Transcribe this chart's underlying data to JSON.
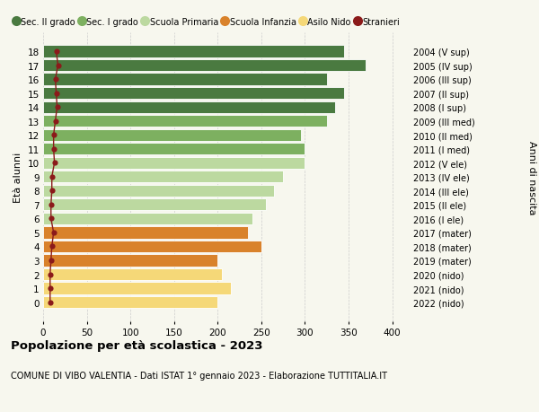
{
  "ages": [
    18,
    17,
    16,
    15,
    14,
    13,
    12,
    11,
    10,
    9,
    8,
    7,
    6,
    5,
    4,
    3,
    2,
    1,
    0
  ],
  "right_labels": [
    "2004 (V sup)",
    "2005 (IV sup)",
    "2006 (III sup)",
    "2007 (II sup)",
    "2008 (I sup)",
    "2009 (III med)",
    "2010 (II med)",
    "2011 (I med)",
    "2012 (V ele)",
    "2013 (IV ele)",
    "2014 (III ele)",
    "2015 (II ele)",
    "2016 (I ele)",
    "2017 (mater)",
    "2018 (mater)",
    "2019 (mater)",
    "2020 (nido)",
    "2021 (nido)",
    "2022 (nido)"
  ],
  "bar_values": [
    345,
    370,
    325,
    345,
    335,
    325,
    295,
    300,
    300,
    275,
    265,
    255,
    240,
    235,
    250,
    200,
    205,
    215,
    200
  ],
  "stranieri_values": [
    15,
    17,
    14,
    15,
    16,
    14,
    12,
    12,
    13,
    10,
    10,
    9,
    9,
    12,
    10,
    9,
    8,
    8,
    8
  ],
  "bar_colors": [
    "#4a7a40",
    "#4a7a40",
    "#4a7a40",
    "#4a7a40",
    "#4a7a40",
    "#7db060",
    "#7db060",
    "#7db060",
    "#bcd9a0",
    "#bcd9a0",
    "#bcd9a0",
    "#bcd9a0",
    "#bcd9a0",
    "#d9822b",
    "#d9822b",
    "#d9822b",
    "#f5d878",
    "#f5d878",
    "#f5d878"
  ],
  "colors": {
    "sec_II": "#4a7a40",
    "sec_I": "#7db060",
    "primaria": "#bcd9a0",
    "infanzia": "#d9822b",
    "nido": "#f5d878",
    "stranieri": "#8b1a1a"
  },
  "legend_labels": [
    "Sec. II grado",
    "Sec. I grado",
    "Scuola Primaria",
    "Scuola Infanzia",
    "Asilo Nido",
    "Stranieri"
  ],
  "ylabel_left": "Età alunni",
  "ylabel_right": "Anni di nascita",
  "xlim": [
    0,
    420
  ],
  "xticks": [
    0,
    50,
    100,
    150,
    200,
    250,
    300,
    350,
    400
  ],
  "title": "Popolazione per età scolastica - 2023",
  "subtitle": "COMUNE DI VIBO VALENTIA - Dati ISTAT 1° gennaio 2023 - Elaborazione TUTTITALIA.IT",
  "background_color": "#f7f7ee",
  "bar_height": 0.85
}
